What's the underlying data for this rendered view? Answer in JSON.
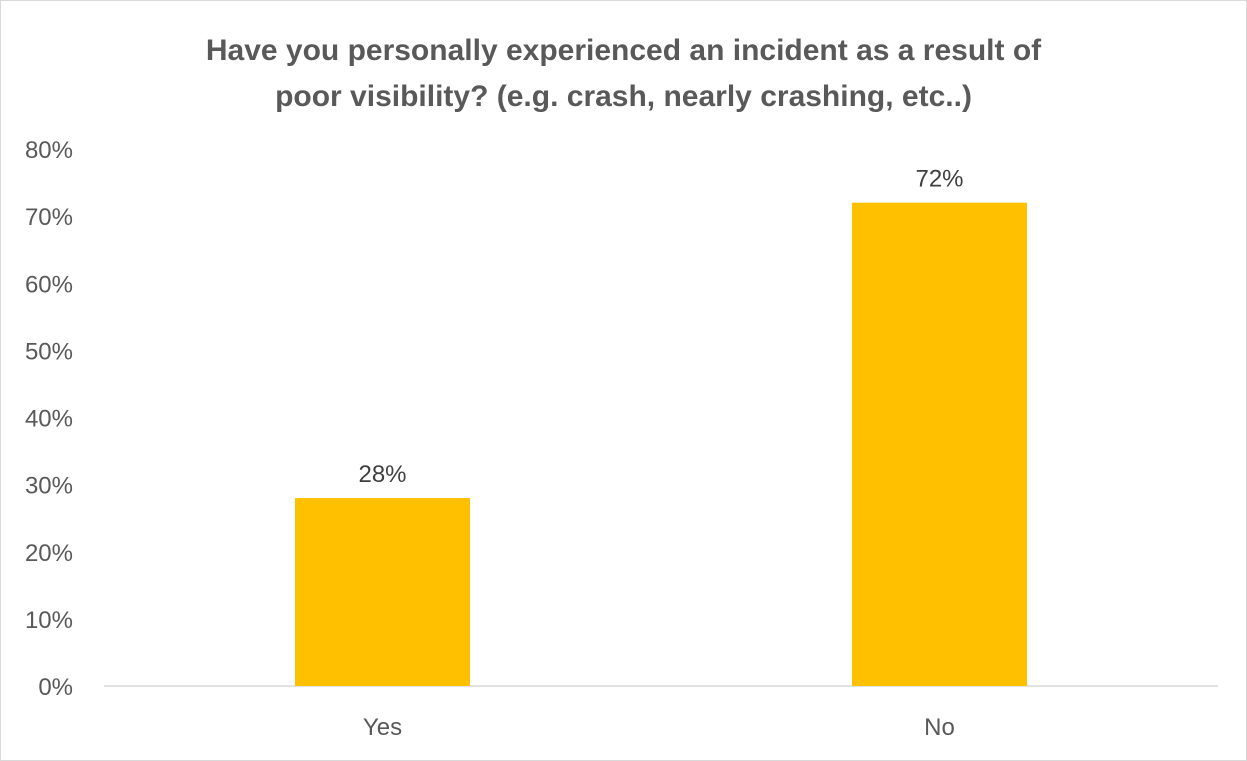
{
  "chart_data": {
    "type": "bar",
    "title": "Have you personally experienced an incident as a result of\npoor visibility? (e.g. crash, nearly crashing, etc..)",
    "xlabel": "",
    "ylabel": "",
    "categories": [
      "Yes",
      "No"
    ],
    "values": [
      28,
      72
    ],
    "data_labels": [
      "28%",
      "72%"
    ],
    "ylim": [
      0,
      80
    ],
    "yticks": [
      0,
      10,
      20,
      30,
      40,
      50,
      60,
      70,
      80
    ],
    "ytick_labels": [
      "0%",
      "10%",
      "20%",
      "30%",
      "40%",
      "50%",
      "60%",
      "70%",
      "80%"
    ],
    "grid": false,
    "legend": "none",
    "bar_color": "#FFC000",
    "axis_color": "#D9D9D9",
    "text_color": "#595959"
  }
}
